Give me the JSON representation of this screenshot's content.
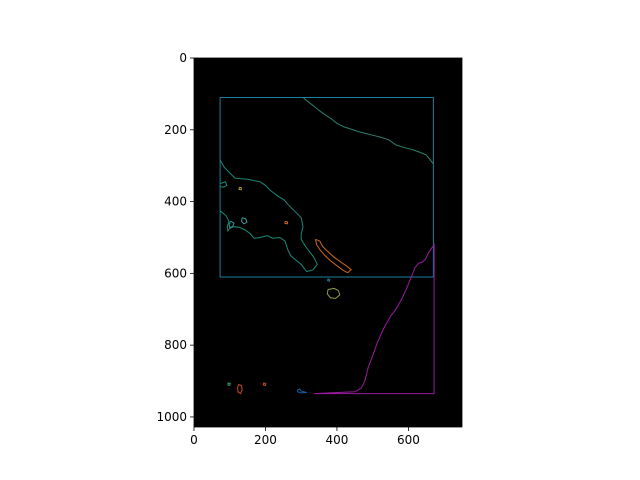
{
  "chart_data": {
    "type": "image",
    "title": "",
    "xlabel": "",
    "ylabel": "",
    "xlim": [
      0,
      750
    ],
    "ylim": [
      1028,
      0
    ],
    "image_extent": {
      "x": [
        0,
        750
      ],
      "y": [
        0,
        1028
      ]
    },
    "background_color": "#000000",
    "x_ticks": [
      0,
      200,
      400,
      600
    ],
    "y_ticks": [
      0,
      200,
      400,
      600,
      800,
      1000
    ],
    "grid": false,
    "contours": [
      {
        "color": "#1c7fa0",
        "points": [
          [
            73,
            110
          ],
          [
            670,
            110
          ],
          [
            670,
            610
          ],
          [
            73,
            610
          ],
          [
            73,
            110
          ]
        ]
      },
      {
        "color": "#2a8070",
        "points": [
          [
            305,
            110
          ],
          [
            320,
            122
          ],
          [
            340,
            138
          ],
          [
            355,
            150
          ],
          [
            370,
            160
          ],
          [
            385,
            170
          ],
          [
            400,
            182
          ],
          [
            420,
            192
          ],
          [
            440,
            198
          ],
          [
            460,
            205
          ],
          [
            480,
            210
          ],
          [
            500,
            215
          ],
          [
            520,
            220
          ],
          [
            545,
            228
          ],
          [
            565,
            242
          ],
          [
            590,
            250
          ],
          [
            610,
            255
          ],
          [
            630,
            262
          ],
          [
            650,
            270
          ],
          [
            670,
            295
          ]
        ]
      },
      {
        "color": "#1a8a78",
        "points": [
          [
            73,
            285
          ],
          [
            85,
            305
          ],
          [
            100,
            320
          ],
          [
            115,
            335
          ],
          [
            150,
            338
          ],
          [
            185,
            345
          ],
          [
            200,
            355
          ],
          [
            215,
            370
          ],
          [
            235,
            385
          ],
          [
            252,
            395
          ],
          [
            265,
            410
          ],
          [
            285,
            430
          ],
          [
            300,
            445
          ],
          [
            305,
            470
          ],
          [
            300,
            490
          ],
          [
            300,
            505
          ],
          [
            310,
            522
          ],
          [
            320,
            535
          ],
          [
            335,
            555
          ],
          [
            345,
            575
          ],
          [
            333,
            590
          ],
          [
            315,
            595
          ],
          [
            300,
            575
          ],
          [
            285,
            563
          ],
          [
            270,
            550
          ],
          [
            262,
            533
          ],
          [
            255,
            510
          ],
          [
            240,
            500
          ],
          [
            220,
            502
          ],
          [
            205,
            495
          ],
          [
            185,
            500
          ],
          [
            168,
            502
          ],
          [
            158,
            490
          ],
          [
            145,
            480
          ],
          [
            128,
            472
          ],
          [
            110,
            470
          ],
          [
            100,
            475
          ],
          [
            95,
            482
          ],
          [
            93,
            470
          ],
          [
            98,
            455
          ],
          [
            90,
            440
          ],
          [
            78,
            430
          ],
          [
            73,
            425
          ]
        ]
      },
      {
        "color": "#1a8a78",
        "points": [
          [
            73,
            350
          ],
          [
            88,
            345
          ],
          [
            92,
            355
          ],
          [
            82,
            360
          ],
          [
            73,
            358
          ]
        ]
      },
      {
        "color": "#2a9a90",
        "points": [
          [
            103,
            455
          ],
          [
            112,
            460
          ],
          [
            108,
            470
          ],
          [
            100,
            472
          ],
          [
            98,
            463
          ],
          [
            103,
            455
          ]
        ]
      },
      {
        "color": "#3aa0a0",
        "points": [
          [
            135,
            445
          ],
          [
            145,
            448
          ],
          [
            148,
            458
          ],
          [
            140,
            462
          ],
          [
            133,
            455
          ],
          [
            135,
            445
          ]
        ]
      },
      {
        "color": "#cc6a20",
        "points": [
          [
            340,
            505
          ],
          [
            352,
            510
          ],
          [
            360,
            525
          ],
          [
            375,
            540
          ],
          [
            392,
            555
          ],
          [
            410,
            568
          ],
          [
            428,
            580
          ],
          [
            440,
            590
          ],
          [
            430,
            598
          ],
          [
            418,
            592
          ],
          [
            402,
            580
          ],
          [
            382,
            565
          ],
          [
            366,
            550
          ],
          [
            353,
            535
          ],
          [
            343,
            520
          ],
          [
            340,
            505
          ]
        ]
      },
      {
        "color": "#88a040",
        "points": [
          [
            375,
            645
          ],
          [
            392,
            642
          ],
          [
            404,
            648
          ],
          [
            408,
            660
          ],
          [
            396,
            670
          ],
          [
            382,
            668
          ],
          [
            373,
            657
          ],
          [
            375,
            645
          ]
        ]
      },
      {
        "color": "#1c7fa0",
        "points": [
          [
            375,
            615
          ],
          [
            380,
            617
          ],
          [
            378,
            622
          ],
          [
            374,
            620
          ],
          [
            375,
            615
          ]
        ]
      },
      {
        "color": "#cc6a20",
        "points": [
          [
            255,
            455
          ],
          [
            262,
            457
          ],
          [
            261,
            462
          ],
          [
            255,
            461
          ],
          [
            255,
            455
          ]
        ]
      },
      {
        "color": "#aa9a40",
        "points": [
          [
            127,
            360
          ],
          [
            133,
            362
          ],
          [
            132,
            367
          ],
          [
            126,
            366
          ],
          [
            127,
            360
          ]
        ]
      },
      {
        "color": "#9a1aa0",
        "points": [
          [
            335,
            935
          ],
          [
            490,
            935
          ],
          [
            672,
            935
          ],
          [
            672,
            520
          ],
          [
            658,
            540
          ],
          [
            648,
            560
          ],
          [
            640,
            568
          ],
          [
            628,
            572
          ],
          [
            618,
            585
          ],
          [
            608,
            610
          ],
          [
            598,
            635
          ],
          [
            582,
            670
          ],
          [
            565,
            700
          ],
          [
            550,
            720
          ],
          [
            530,
            755
          ],
          [
            512,
            795
          ],
          [
            498,
            835
          ],
          [
            488,
            860
          ],
          [
            478,
            900
          ],
          [
            468,
            920
          ],
          [
            450,
            930
          ],
          [
            335,
            935
          ]
        ]
      },
      {
        "color": "#1a5fa8",
        "points": [
          [
            290,
            925
          ],
          [
            296,
            922
          ],
          [
            300,
            928
          ],
          [
            308,
            930
          ],
          [
            315,
            932
          ],
          [
            300,
            933
          ],
          [
            290,
            930
          ],
          [
            290,
            925
          ]
        ]
      },
      {
        "color": "#cc4a30",
        "points": [
          [
            125,
            910
          ],
          [
            133,
            912
          ],
          [
            135,
            925
          ],
          [
            130,
            935
          ],
          [
            123,
            930
          ],
          [
            122,
            918
          ],
          [
            125,
            910
          ]
        ]
      },
      {
        "color": "#3a9a60",
        "points": [
          [
            95,
            905
          ],
          [
            102,
            907
          ],
          [
            100,
            912
          ],
          [
            95,
            911
          ],
          [
            95,
            905
          ]
        ]
      },
      {
        "color": "#cc4a30",
        "points": [
          [
            195,
            905
          ],
          [
            201,
            907
          ],
          [
            200,
            912
          ],
          [
            194,
            911
          ],
          [
            195,
            905
          ]
        ]
      }
    ]
  }
}
